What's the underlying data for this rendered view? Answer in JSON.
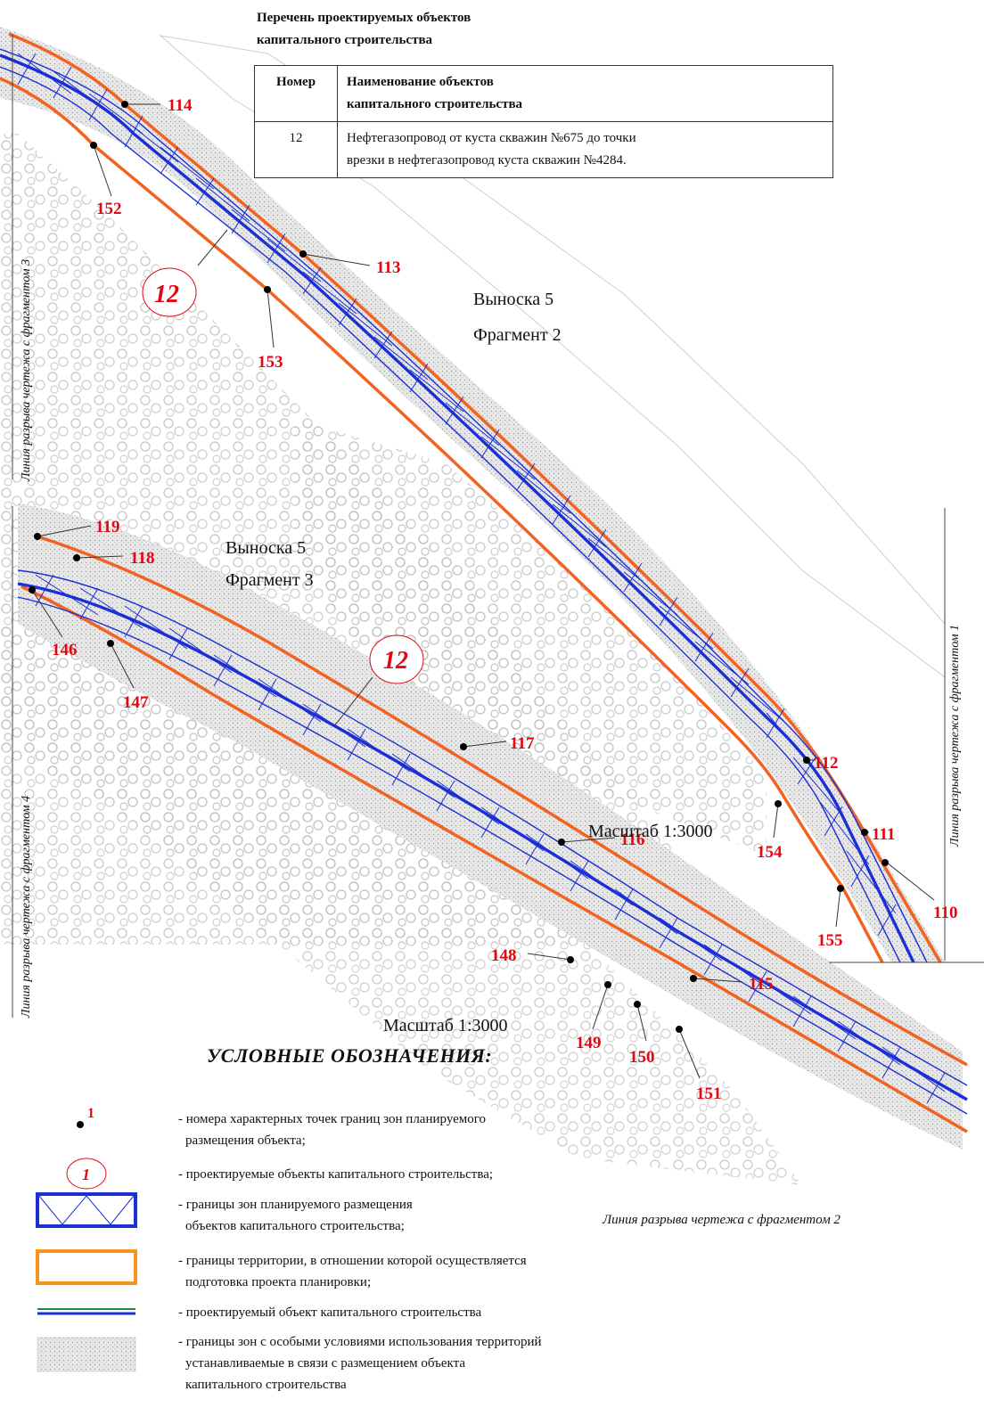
{
  "table": {
    "title_line1": "Перечень проектируемых объектов",
    "title_line2": "капитального строительства",
    "header_num": "Номер",
    "header_name_line1": "Наименование объектов",
    "header_name_line2": "капитального строительства",
    "rows": [
      {
        "num": "12",
        "name_line1": "Нефтегазопровод от куста скважин №675 до точки",
        "name_line2": "врезки в нефтегазопровод куста скважин №4284."
      }
    ]
  },
  "break_labels": {
    "left_top": "Линия разрыва чертежа с фрагментом 3",
    "left_bottom": "Линия разрыва чертежа с фрагментом 4",
    "right": "Линия разрыва чертежа с фрагментом 1",
    "bottom": "Линия разрыва чертежа с фрагментом 2"
  },
  "callouts": {
    "fragment2_line1": "Выноска 5",
    "fragment2_line2": "Фрагмент 2",
    "fragment3_line1": "Выноска 5",
    "fragment3_line2": "Фрагмент 3",
    "scale_upper": "Масштаб 1:3000",
    "scale_lower": "Масштаб 1:3000"
  },
  "object_labels": {
    "upper": "12",
    "lower": "12"
  },
  "points": {
    "p114": "114",
    "p152": "152",
    "p113": "113",
    "p153": "153",
    "p112": "112",
    "p154": "154",
    "p111": "111",
    "p110": "110",
    "p155": "155",
    "p119": "119",
    "p118": "118",
    "p146": "146",
    "p147": "147",
    "p117": "117",
    "p116": "116",
    "p148": "148",
    "p115": "115",
    "p149": "149",
    "p150": "150",
    "p151": "151"
  },
  "legend": {
    "title": "УСЛОВНЫЕ ОБОЗНАЧЕНИЯ:",
    "point_sample": "1",
    "object_sample": "1",
    "items": [
      {
        "text_line1": "- номера характерных точек границ зон планируемого",
        "text_line2": "размещения объекта;"
      },
      {
        "text_line1": "- проектируемые объекты капитального строительства;",
        "text_line2": ""
      },
      {
        "text_line1": "- границы зон планируемого размещения",
        "text_line2": "объектов капитального строительства;"
      },
      {
        "text_line1": "- границы территории, в отношении которой осуществляется",
        "text_line2": "подготовка проекта планировки;"
      },
      {
        "text_line1": "- проектируемый объект капитального строительства",
        "text_line2": ""
      },
      {
        "text_line1": "- границы зон с особыми условиями использования территорий",
        "text_line2": "устанавливаемые в связи с размещением объекта",
        "text_line3": "капитального строительства"
      }
    ]
  },
  "colors": {
    "territory_boundary": "#f26322",
    "placement_zone": "#1a2fd6",
    "pipeline_green": "#1f8a3a",
    "point_label": "#e30613",
    "background_symbols": "#b8b8b8"
  }
}
